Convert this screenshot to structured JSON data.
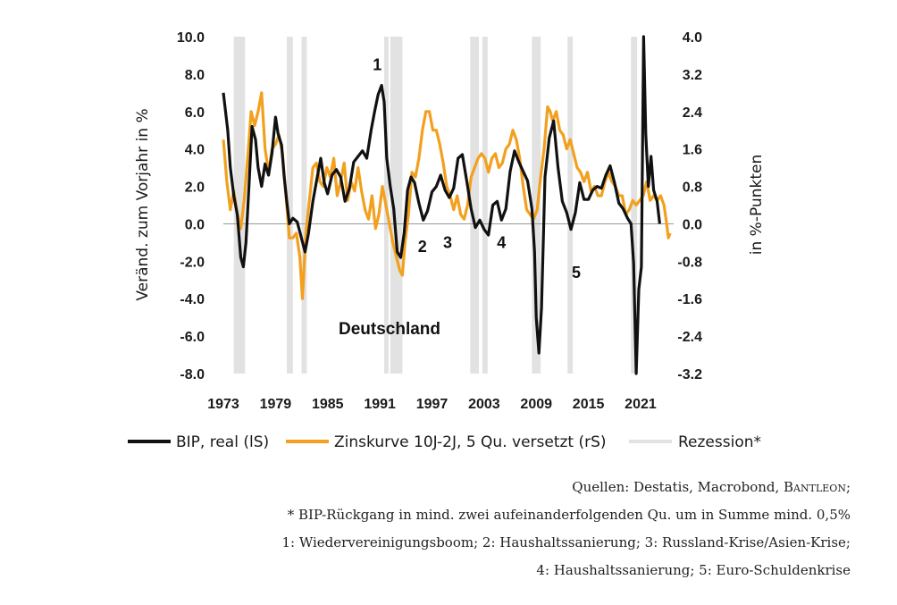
{
  "chart_data": {
    "type": "line",
    "region_label": "Deutschland",
    "y_left": {
      "label": "Veränd. zum Vorjahr in %",
      "range": [
        -8,
        10
      ],
      "ticks": [
        "10.0",
        "8.0",
        "6.0",
        "4.0",
        "2.0",
        "0.0",
        "-2.0",
        "-4.0",
        "-6.0",
        "-8.0"
      ]
    },
    "y_right": {
      "label": "in %-Punkten",
      "range": [
        -3.2,
        4.0
      ],
      "ticks": [
        "4.0",
        "3.2",
        "2.4",
        "1.6",
        "0.8",
        "0.0",
        "-0.8",
        "-1.6",
        "-2.4",
        "-3.2"
      ]
    },
    "x": {
      "range": [
        1973,
        2024.6
      ],
      "ticks": [
        "1973",
        "1979",
        "1985",
        "1991",
        "1997",
        "2003",
        "2009",
        "2015",
        "2021"
      ]
    },
    "recessions": [
      [
        1974.2,
        1975.5
      ],
      [
        1980.3,
        1981.0
      ],
      [
        1982.0,
        1982.6
      ],
      [
        1991.5,
        1992.0
      ],
      [
        1992.2,
        1993.6
      ],
      [
        2001.4,
        2002.4
      ],
      [
        2002.8,
        2003.4
      ],
      [
        2008.5,
        2009.5
      ],
      [
        2012.6,
        2013.2
      ],
      [
        2019.9,
        2020.6
      ]
    ],
    "series": [
      {
        "name": "BIP, real (lS)",
        "axis": "left",
        "color": "#111111",
        "points": [
          [
            1973.0,
            7.0
          ],
          [
            1973.5,
            5.0
          ],
          [
            1973.8,
            3.0
          ],
          [
            1974.2,
            1.5
          ],
          [
            1974.6,
            0.5
          ],
          [
            1975.0,
            -1.8
          ],
          [
            1975.3,
            -2.3
          ],
          [
            1975.6,
            -1.0
          ],
          [
            1976.0,
            2.5
          ],
          [
            1976.3,
            5.2
          ],
          [
            1976.7,
            4.5
          ],
          [
            1977.0,
            3.0
          ],
          [
            1977.4,
            2.0
          ],
          [
            1977.8,
            3.2
          ],
          [
            1978.2,
            2.6
          ],
          [
            1978.6,
            3.8
          ],
          [
            1979.0,
            5.7
          ],
          [
            1979.3,
            4.8
          ],
          [
            1979.7,
            4.2
          ],
          [
            1980.0,
            2.5
          ],
          [
            1980.3,
            1.2
          ],
          [
            1980.6,
            0.0
          ],
          [
            1981.0,
            0.3
          ],
          [
            1981.5,
            0.1
          ],
          [
            1982.0,
            -0.8
          ],
          [
            1982.4,
            -1.5
          ],
          [
            1982.8,
            -0.5
          ],
          [
            1983.3,
            1.2
          ],
          [
            1983.8,
            2.5
          ],
          [
            1984.2,
            3.5
          ],
          [
            1984.6,
            2.2
          ],
          [
            1985.0,
            1.6
          ],
          [
            1985.5,
            2.6
          ],
          [
            1986.0,
            2.9
          ],
          [
            1986.5,
            2.5
          ],
          [
            1987.0,
            1.2
          ],
          [
            1987.5,
            1.9
          ],
          [
            1988.0,
            3.3
          ],
          [
            1988.5,
            3.6
          ],
          [
            1989.0,
            3.9
          ],
          [
            1989.5,
            3.5
          ],
          [
            1990.0,
            5.0
          ],
          [
            1990.4,
            6.0
          ],
          [
            1990.8,
            6.9
          ],
          [
            1991.2,
            7.4
          ],
          [
            1991.5,
            6.5
          ],
          [
            1991.8,
            3.5
          ],
          [
            1992.2,
            2.0
          ],
          [
            1992.6,
            0.8
          ],
          [
            1993.0,
            -1.5
          ],
          [
            1993.4,
            -1.8
          ],
          [
            1993.8,
            -0.5
          ],
          [
            1994.2,
            1.8
          ],
          [
            1994.6,
            2.5
          ],
          [
            1995.0,
            2.2
          ],
          [
            1995.5,
            1.1
          ],
          [
            1996.0,
            0.2
          ],
          [
            1996.5,
            0.7
          ],
          [
            1997.0,
            1.7
          ],
          [
            1997.5,
            2.0
          ],
          [
            1998.0,
            2.6
          ],
          [
            1998.5,
            1.8
          ],
          [
            1999.0,
            1.4
          ],
          [
            1999.5,
            1.9
          ],
          [
            2000.0,
            3.5
          ],
          [
            2000.5,
            3.7
          ],
          [
            2001.0,
            2.3
          ],
          [
            2001.5,
            0.8
          ],
          [
            2002.0,
            -0.2
          ],
          [
            2002.5,
            0.2
          ],
          [
            2003.0,
            -0.3
          ],
          [
            2003.5,
            -0.6
          ],
          [
            2004.0,
            1.0
          ],
          [
            2004.5,
            1.2
          ],
          [
            2005.0,
            0.2
          ],
          [
            2005.5,
            0.8
          ],
          [
            2006.0,
            2.8
          ],
          [
            2006.5,
            3.9
          ],
          [
            2007.0,
            3.3
          ],
          [
            2007.5,
            2.8
          ],
          [
            2008.0,
            2.3
          ],
          [
            2008.5,
            0.8
          ],
          [
            2008.8,
            -1.5
          ],
          [
            2009.0,
            -5.0
          ],
          [
            2009.3,
            -6.9
          ],
          [
            2009.6,
            -4.5
          ],
          [
            2010.0,
            2.5
          ],
          [
            2010.5,
            4.6
          ],
          [
            2011.0,
            5.5
          ],
          [
            2011.5,
            3.0
          ],
          [
            2012.0,
            1.2
          ],
          [
            2012.5,
            0.6
          ],
          [
            2013.0,
            -0.3
          ],
          [
            2013.5,
            0.6
          ],
          [
            2014.0,
            2.2
          ],
          [
            2014.5,
            1.3
          ],
          [
            2015.0,
            1.3
          ],
          [
            2015.5,
            1.8
          ],
          [
            2016.0,
            2.0
          ],
          [
            2016.5,
            1.9
          ],
          [
            2017.0,
            2.6
          ],
          [
            2017.5,
            3.1
          ],
          [
            2018.0,
            2.2
          ],
          [
            2018.5,
            1.1
          ],
          [
            2019.0,
            0.8
          ],
          [
            2019.5,
            0.3
          ],
          [
            2019.9,
            0.0
          ],
          [
            2020.2,
            -2.1
          ],
          [
            2020.5,
            -8.0
          ],
          [
            2020.8,
            -3.5
          ],
          [
            2021.1,
            -2.3
          ],
          [
            2021.35,
            10.0
          ],
          [
            2021.6,
            4.8
          ],
          [
            2021.9,
            2.0
          ],
          [
            2022.2,
            3.6
          ],
          [
            2022.5,
            1.8
          ],
          [
            2022.9,
            1.2
          ],
          [
            2023.2,
            0.0
          ]
        ]
      },
      {
        "name": "Zinskurve 10J-2J, 5 Qu. versetzt (rS)",
        "axis": "right",
        "color": "#f2a01e",
        "points": [
          [
            1973.0,
            1.8
          ],
          [
            1973.4,
            0.9
          ],
          [
            1973.8,
            0.3
          ],
          [
            1974.2,
            0.7
          ],
          [
            1974.6,
            0.2
          ],
          [
            1975.0,
            -0.1
          ],
          [
            1975.4,
            0.5
          ],
          [
            1975.8,
            1.4
          ],
          [
            1976.2,
            2.4
          ],
          [
            1976.6,
            2.1
          ],
          [
            1977.0,
            2.4
          ],
          [
            1977.4,
            2.8
          ],
          [
            1977.8,
            1.6
          ],
          [
            1978.2,
            1.1
          ],
          [
            1978.6,
            1.6
          ],
          [
            1979.0,
            1.7
          ],
          [
            1979.4,
            1.9
          ],
          [
            1979.8,
            1.5
          ],
          [
            1980.2,
            0.6
          ],
          [
            1980.6,
            -0.3
          ],
          [
            1981.0,
            -0.3
          ],
          [
            1981.4,
            -0.2
          ],
          [
            1981.8,
            -0.7
          ],
          [
            1982.1,
            -1.6
          ],
          [
            1982.5,
            -0.2
          ],
          [
            1982.9,
            0.5
          ],
          [
            1983.3,
            1.2
          ],
          [
            1983.7,
            1.3
          ],
          [
            1984.1,
            0.9
          ],
          [
            1984.5,
            0.8
          ],
          [
            1984.9,
            1.2
          ],
          [
            1985.3,
            1.0
          ],
          [
            1985.7,
            1.4
          ],
          [
            1986.1,
            0.6
          ],
          [
            1986.5,
            0.9
          ],
          [
            1986.9,
            1.3
          ],
          [
            1987.3,
            0.5
          ],
          [
            1987.7,
            0.9
          ],
          [
            1988.1,
            0.7
          ],
          [
            1988.5,
            1.2
          ],
          [
            1988.9,
            0.7
          ],
          [
            1989.3,
            0.3
          ],
          [
            1989.7,
            0.1
          ],
          [
            1990.1,
            0.6
          ],
          [
            1990.5,
            -0.1
          ],
          [
            1990.9,
            0.2
          ],
          [
            1991.3,
            0.8
          ],
          [
            1991.7,
            0.4
          ],
          [
            1992.1,
            0.0
          ],
          [
            1992.5,
            -0.4
          ],
          [
            1992.9,
            -0.7
          ],
          [
            1993.3,
            -1.0
          ],
          [
            1993.6,
            -1.1
          ],
          [
            1993.9,
            -0.4
          ],
          [
            1994.3,
            0.2
          ],
          [
            1994.7,
            1.1
          ],
          [
            1995.1,
            1.0
          ],
          [
            1995.5,
            1.4
          ],
          [
            1995.9,
            2.0
          ],
          [
            1996.3,
            2.4
          ],
          [
            1996.7,
            2.4
          ],
          [
            1997.1,
            2.0
          ],
          [
            1997.5,
            2.0
          ],
          [
            1997.9,
            1.7
          ],
          [
            1998.3,
            1.3
          ],
          [
            1998.7,
            0.8
          ],
          [
            1999.1,
            0.6
          ],
          [
            1999.5,
            0.3
          ],
          [
            1999.9,
            0.6
          ],
          [
            2000.3,
            0.2
          ],
          [
            2000.7,
            0.1
          ],
          [
            2001.1,
            0.4
          ],
          [
            2001.5,
            1.0
          ],
          [
            2001.9,
            1.2
          ],
          [
            2002.3,
            1.4
          ],
          [
            2002.7,
            1.5
          ],
          [
            2003.1,
            1.4
          ],
          [
            2003.5,
            1.1
          ],
          [
            2003.9,
            1.4
          ],
          [
            2004.3,
            1.5
          ],
          [
            2004.7,
            1.2
          ],
          [
            2005.1,
            1.3
          ],
          [
            2005.5,
            1.6
          ],
          [
            2005.9,
            1.7
          ],
          [
            2006.3,
            2.0
          ],
          [
            2006.7,
            1.8
          ],
          [
            2007.1,
            1.4
          ],
          [
            2007.5,
            0.8
          ],
          [
            2007.9,
            0.3
          ],
          [
            2008.3,
            0.2
          ],
          [
            2008.7,
            0.1
          ],
          [
            2009.1,
            0.3
          ],
          [
            2009.5,
            1.0
          ],
          [
            2009.9,
            1.6
          ],
          [
            2010.3,
            2.5
          ],
          [
            2010.6,
            2.4
          ],
          [
            2010.9,
            2.2
          ],
          [
            2011.3,
            2.4
          ],
          [
            2011.7,
            2.0
          ],
          [
            2012.1,
            1.9
          ],
          [
            2012.5,
            1.6
          ],
          [
            2012.9,
            1.8
          ],
          [
            2013.3,
            1.5
          ],
          [
            2013.7,
            1.2
          ],
          [
            2014.1,
            1.1
          ],
          [
            2014.5,
            0.9
          ],
          [
            2014.9,
            1.1
          ],
          [
            2015.3,
            0.7
          ],
          [
            2015.7,
            0.8
          ],
          [
            2016.1,
            0.6
          ],
          [
            2016.5,
            0.6
          ],
          [
            2016.9,
            0.9
          ],
          [
            2017.3,
            1.1
          ],
          [
            2017.7,
            0.9
          ],
          [
            2018.1,
            0.8
          ],
          [
            2018.5,
            0.6
          ],
          [
            2018.9,
            0.6
          ],
          [
            2019.3,
            0.2
          ],
          [
            2019.7,
            0.3
          ],
          [
            2020.1,
            0.5
          ],
          [
            2020.5,
            0.4
          ],
          [
            2020.9,
            0.5
          ],
          [
            2021.3,
            0.6
          ],
          [
            2021.7,
            0.9
          ],
          [
            2022.1,
            0.5
          ],
          [
            2022.5,
            0.6
          ],
          [
            2022.9,
            0.5
          ],
          [
            2023.3,
            0.6
          ],
          [
            2023.7,
            0.4
          ],
          [
            2024.0,
            0.0
          ],
          [
            2024.2,
            -0.3
          ],
          [
            2024.4,
            -0.2
          ]
        ]
      },
      {
        "name": "Rezession*",
        "color": "#e2e2e2"
      }
    ],
    "annotations": [
      {
        "text": "1",
        "x": 1990.7,
        "y": 8.2
      },
      {
        "text": "2",
        "x": 1995.9,
        "y": -1.5
      },
      {
        "text": "3",
        "x": 1998.8,
        "y": -1.3
      },
      {
        "text": "4",
        "x": 2005.0,
        "y": -1.3
      },
      {
        "text": "5",
        "x": 2013.6,
        "y": -2.9
      }
    ],
    "legend_position": "bottom"
  },
  "notes": {
    "sources_prefix": "Quellen: Destatis, Macrobond, ",
    "sources_brand": "Bantleon",
    "sources_suffix": ";",
    "footnote": "* BIP-Rückgang in mind. zwei aufeinanderfolgenden Qu. um in Summe mind. 0,5%",
    "key_line1": "1: Wiedervereinigungsboom; 2: Haushaltssanierung; 3: Russland-Krise/Asien-Krise;",
    "key_line2": "4: Haushaltssanierung; 5: Euro-Schuldenkrise"
  }
}
